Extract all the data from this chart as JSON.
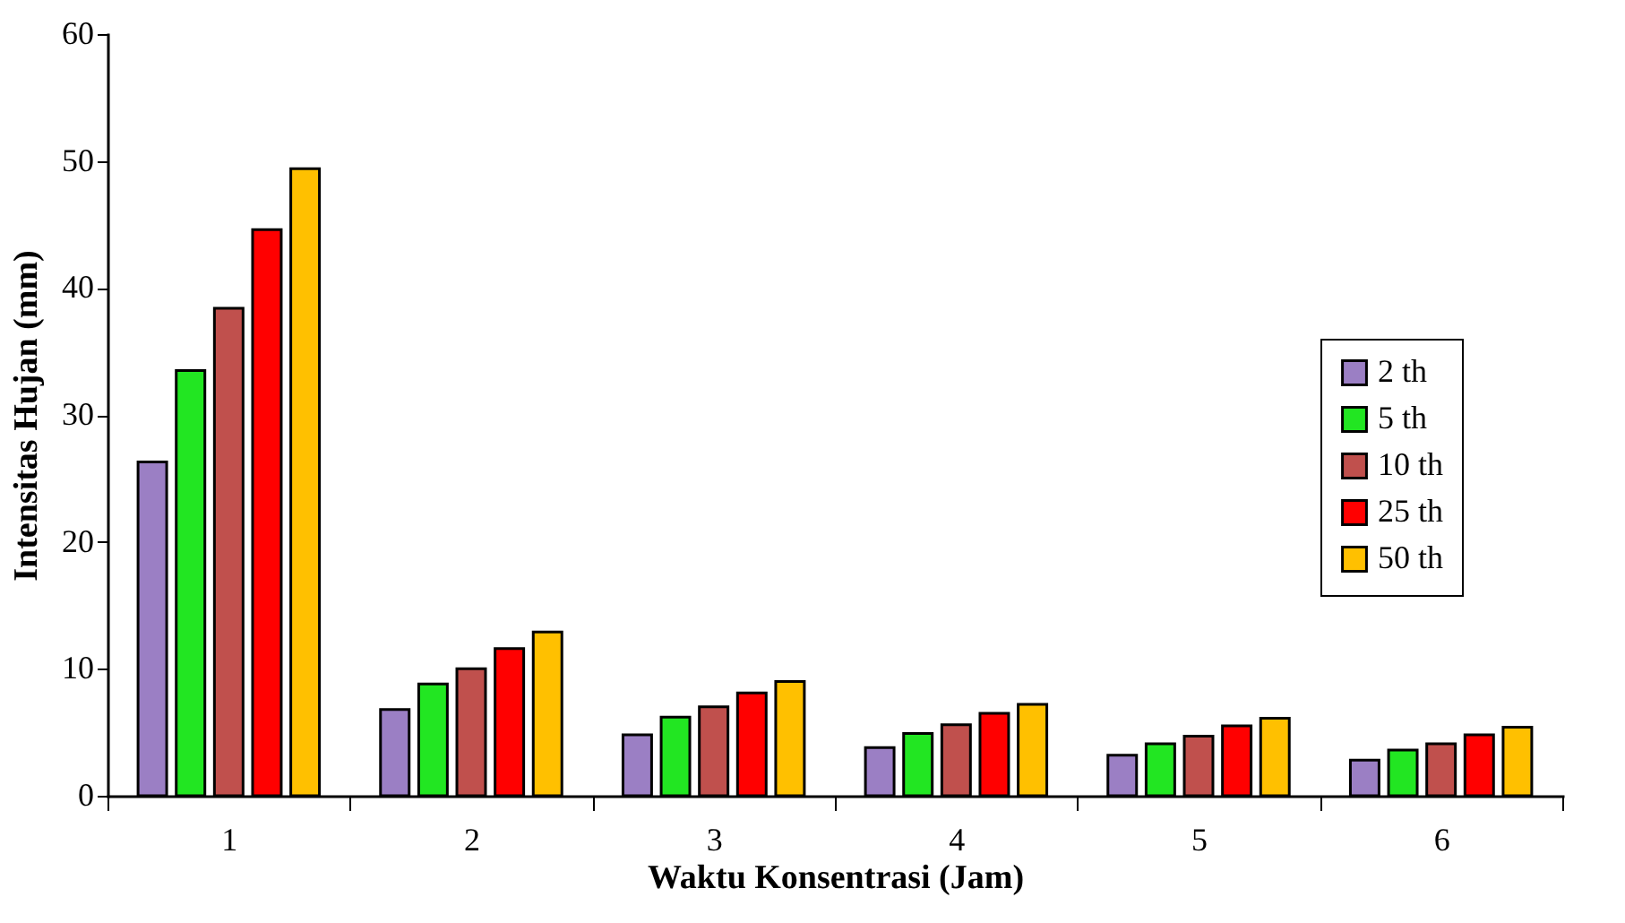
{
  "chart_data": {
    "type": "bar",
    "xlabel": "Waktu Konsentrasi (Jam)",
    "ylabel": "Intensitas Hujan (mm)",
    "categories": [
      "1",
      "2",
      "3",
      "4",
      "5",
      "6"
    ],
    "series": [
      {
        "name": "2 th",
        "color": "#9b7fc4",
        "values": [
          26.3,
          6.8,
          4.8,
          3.8,
          3.2,
          2.8
        ]
      },
      {
        "name": "5 th",
        "color": "#22e622",
        "values": [
          33.5,
          8.8,
          6.2,
          4.9,
          4.1,
          3.6
        ]
      },
      {
        "name": "10 th",
        "color": "#c0504d",
        "values": [
          38.4,
          10.0,
          7.0,
          5.6,
          4.7,
          4.1
        ]
      },
      {
        "name": "25 th",
        "color": "#ff0000",
        "values": [
          44.6,
          11.6,
          8.1,
          6.5,
          5.5,
          4.8
        ]
      },
      {
        "name": "50 th",
        "color": "#ffc000",
        "values": [
          49.4,
          12.9,
          9.0,
          7.2,
          6.1,
          5.4
        ]
      }
    ],
    "ylim": [
      0,
      60
    ],
    "yticks": [
      0,
      10,
      20,
      30,
      40,
      50,
      60
    ],
    "grid": false,
    "legend": "right"
  }
}
